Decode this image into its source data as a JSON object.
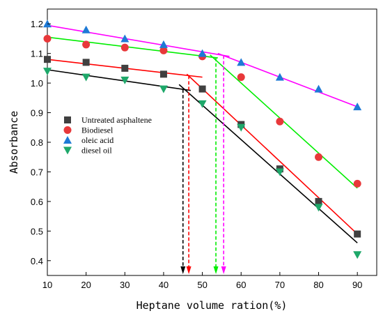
{
  "chart_data": {
    "type": "scatter",
    "title": "",
    "xlabel": "Heptane volume ration(%)",
    "ylabel": "Absorbance",
    "xlim": [
      10,
      95
    ],
    "ylim": [
      0.35,
      1.25
    ],
    "xticks": [
      10,
      20,
      30,
      40,
      50,
      60,
      70,
      80,
      90
    ],
    "yticks": [
      0.4,
      0.5,
      0.6,
      0.7,
      0.8,
      0.9,
      1.0,
      1.1,
      1.2
    ],
    "grid": false,
    "legend_position": "center-left",
    "series": [
      {
        "name": "Untreated asphaltene",
        "marker": "square",
        "color": "#404040",
        "line_color": "#000000",
        "x": [
          10,
          20,
          30,
          40,
          50,
          60,
          70,
          80,
          90
        ],
        "y": [
          1.08,
          1.07,
          1.05,
          1.03,
          0.98,
          0.86,
          0.71,
          0.6,
          0.49
        ],
        "fit_lines": [
          {
            "x": [
              10,
              47
            ],
            "y": [
              1.045,
              0.975
            ]
          },
          {
            "x": [
              44,
              90
            ],
            "y": [
              0.995,
              0.46
            ]
          }
        ],
        "breakpoint_x": 45
      },
      {
        "name": "Biodiesel",
        "marker": "circle",
        "color": "#e8383a",
        "line_color": "#ff0000",
        "x": [
          10,
          20,
          30,
          40,
          50,
          60,
          70,
          80,
          90
        ],
        "y": [
          1.15,
          1.13,
          1.12,
          1.11,
          1.09,
          1.02,
          0.87,
          0.75,
          0.66
        ],
        "fit_lines": [
          {
            "x": [
              10,
              50
            ],
            "y": [
              1.08,
              1.02
            ]
          },
          {
            "x": [
              46,
              90
            ],
            "y": [
              1.03,
              0.49
            ]
          }
        ],
        "breakpoint_x": 46.5
      },
      {
        "name": "oleic acid",
        "marker": "triangle-up",
        "color": "#1e7ad6",
        "line_color": "#ff00ff",
        "x": [
          10,
          20,
          30,
          40,
          50,
          60,
          70,
          80,
          90
        ],
        "y": [
          1.2,
          1.18,
          1.15,
          1.13,
          1.1,
          1.07,
          1.02,
          0.98,
          0.92
        ],
        "fit_lines": [
          {
            "x": [
              10,
              57
            ],
            "y": [
              1.195,
              1.09
            ]
          },
          {
            "x": [
              54,
              90
            ],
            "y": [
              1.1,
              0.92
            ]
          }
        ],
        "breakpoint_x": 55.5
      },
      {
        "name": "diesel oil",
        "marker": "triangle-down",
        "color": "#1ea86a",
        "line_color": "#00ee00",
        "x": [
          10,
          20,
          30,
          40,
          50,
          60,
          70,
          80,
          90
        ],
        "y": [
          1.04,
          1.02,
          1.01,
          0.98,
          0.93,
          0.85,
          0.7,
          0.58,
          0.42
        ],
        "fit_lines": [
          {
            "x": [
              10,
              54
            ],
            "y": [
              1.155,
              1.085
            ]
          },
          {
            "x": [
              52,
              90
            ],
            "y": [
              1.095,
              0.645
            ]
          }
        ],
        "breakpoint_x": 53.5
      }
    ]
  }
}
